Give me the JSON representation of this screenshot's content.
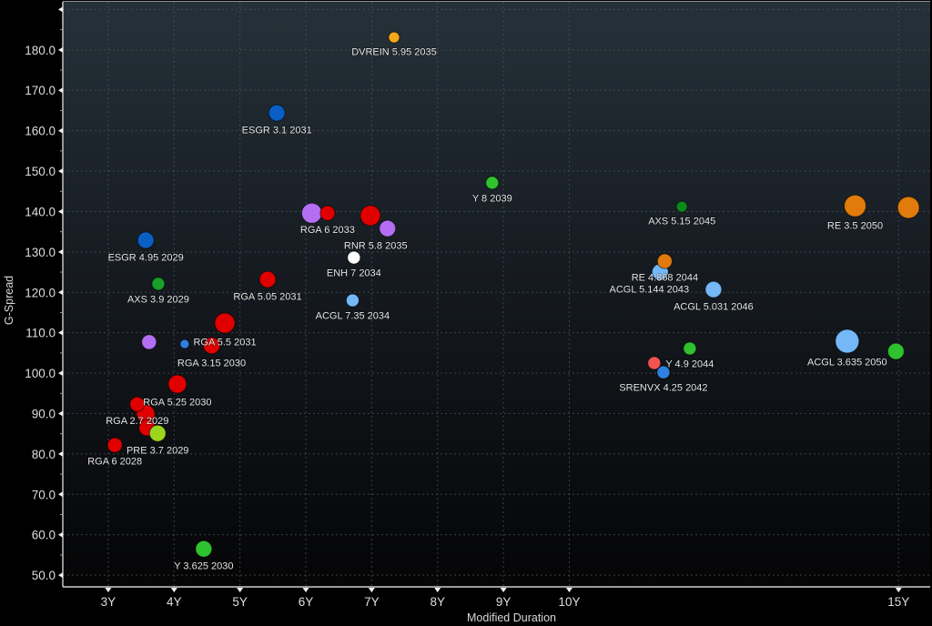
{
  "chart_data": {
    "type": "scatter",
    "subtype": "bubble",
    "title": "",
    "xlabel": "Modified Duration",
    "ylabel": "G-Spread",
    "xlim": [
      2.31,
      15.48
    ],
    "ylim": [
      47.1,
      191.9
    ],
    "grid": true,
    "legend": "none",
    "x_ticks": [
      3,
      4,
      5,
      6,
      7,
      8,
      9,
      10,
      15
    ],
    "x_tick_labels": [
      "3Y",
      "4Y",
      "5Y",
      "6Y",
      "7Y",
      "8Y",
      "9Y",
      "10Y",
      "15Y"
    ],
    "y_ticks": [
      50,
      60,
      70,
      80,
      90,
      100,
      110,
      120,
      130,
      140,
      150,
      160,
      170,
      180,
      190
    ],
    "y_tick_labels": [
      "50.0",
      "60.0",
      "70.0",
      "80.0",
      "90.0",
      "100.0",
      "110.0",
      "120.0",
      "130.0",
      "140.0",
      "150.0",
      "160.0",
      "170.0",
      "180.0",
      ""
    ],
    "points": [
      {
        "label": "DVREIN 5.95 2035",
        "x": 7.34,
        "y": 183.1,
        "color": "#f7a818",
        "size": 0.46
      },
      {
        "label": "ESGR 3.1 2031",
        "x": 5.56,
        "y": 164.4,
        "color": "#0a5fc4",
        "size": 0.69
      },
      {
        "label": "Y 8 2039",
        "x": 8.83,
        "y": 147.1,
        "color": "#2fc22f",
        "size": 0.54
      },
      {
        "label": "AXS 5.15 2045",
        "x": 11.71,
        "y": 141.2,
        "color": "#0b8a1a",
        "size": 0.46
      },
      {
        "label": "RE 3.5 2050",
        "x": 14.34,
        "y": 141.4,
        "color": "#e07b0c",
        "size": 0.92
      },
      {
        "label": "",
        "x": 15.15,
        "y": 141.0,
        "color": "#e07b0c",
        "size": 0.92
      },
      {
        "label": "ESGR 4.95 2029",
        "x": 3.57,
        "y": 132.9,
        "color": "#0a5fc4",
        "size": 0.69
      },
      {
        "label": "",
        "x": 6.09,
        "y": 139.6,
        "color": "#b46ef2",
        "size": 0.85
      },
      {
        "label": "RGA 6 2033",
        "x": 6.33,
        "y": 139.6,
        "color": "#e00000",
        "size": 0.62
      },
      {
        "label": "",
        "x": 6.98,
        "y": 139.0,
        "color": "#e00000",
        "size": 0.85
      },
      {
        "label": "RNR 5.8 2035",
        "x": 7.24,
        "y": 135.8,
        "color": "#b46ef2",
        "size": 0.69
      },
      {
        "label": "ENH 7 2034",
        "x": 6.73,
        "y": 128.6,
        "color": "#ffffff",
        "size": 0.54
      },
      {
        "label": "ACGL 7.35 2034",
        "x": 6.71,
        "y": 118.0,
        "color": "#74b8f7",
        "size": 0.54
      },
      {
        "label": "AXS 3.9 2029",
        "x": 3.76,
        "y": 122.1,
        "color": "#18a028",
        "size": 0.54
      },
      {
        "label": "RGA 5.05 2031",
        "x": 5.42,
        "y": 123.2,
        "color": "#e00000",
        "size": 0.69
      },
      {
        "label": "RGA 5.5 2031",
        "x": 4.77,
        "y": 112.4,
        "color": "#e00000",
        "size": 0.85
      },
      {
        "label": "",
        "x": 3.62,
        "y": 107.7,
        "color": "#b46ef2",
        "size": 0.62
      },
      {
        "label": "",
        "x": 4.16,
        "y": 107.2,
        "color": "#2f80e0",
        "size": 0.38
      },
      {
        "label": "RGA 3.15 2030",
        "x": 4.57,
        "y": 106.8,
        "color": "#e00000",
        "size": 0.69
      },
      {
        "label": "ACGL 5.144 2043",
        "x": 11.38,
        "y": 125.0,
        "color": "#74b8f7",
        "size": 0.69
      },
      {
        "label": "RE 4.868 2044",
        "x": 11.45,
        "y": 127.7,
        "color": "#e07b0c",
        "size": 0.62
      },
      {
        "label": "ACGL 5.031 2046",
        "x": 12.19,
        "y": 120.7,
        "color": "#74b8f7",
        "size": 0.69
      },
      {
        "label": "Y 4.9 2044",
        "x": 11.83,
        "y": 106.1,
        "color": "#2fc22f",
        "size": 0.54
      },
      {
        "label": "",
        "x": 11.29,
        "y": 102.5,
        "color": "#f25454",
        "size": 0.54
      },
      {
        "label": "SRENVX 4.25 2042",
        "x": 11.43,
        "y": 100.2,
        "color": "#2f80e0",
        "size": 0.54
      },
      {
        "label": "ACGL 3.635 2050",
        "x": 14.22,
        "y": 107.9,
        "color": "#74b8f7",
        "size": 1.0
      },
      {
        "label": "",
        "x": 14.96,
        "y": 105.4,
        "color": "#2fc22f",
        "size": 0.69
      },
      {
        "label": "RGA 5.25 2030",
        "x": 4.05,
        "y": 97.3,
        "color": "#e00000",
        "size": 0.77
      },
      {
        "label": "",
        "x": 3.57,
        "y": 89.9,
        "color": "#e00000",
        "size": 0.77
      },
      {
        "label": "RGA 2.7 2029",
        "x": 3.44,
        "y": 92.3,
        "color": "#e00000",
        "size": 0.62
      },
      {
        "label": "",
        "x": 3.59,
        "y": 86.5,
        "color": "#e00000",
        "size": 0.69
      },
      {
        "label": "PRE 3.7 2029",
        "x": 3.75,
        "y": 85.1,
        "color": "#9bd61c",
        "size": 0.69
      },
      {
        "label": "RGA 6 2028",
        "x": 3.1,
        "y": 82.2,
        "color": "#e00000",
        "size": 0.62
      },
      {
        "label": "Y 3.625 2030",
        "x": 4.45,
        "y": 56.5,
        "color": "#2fc22f",
        "size": 0.69
      }
    ]
  }
}
